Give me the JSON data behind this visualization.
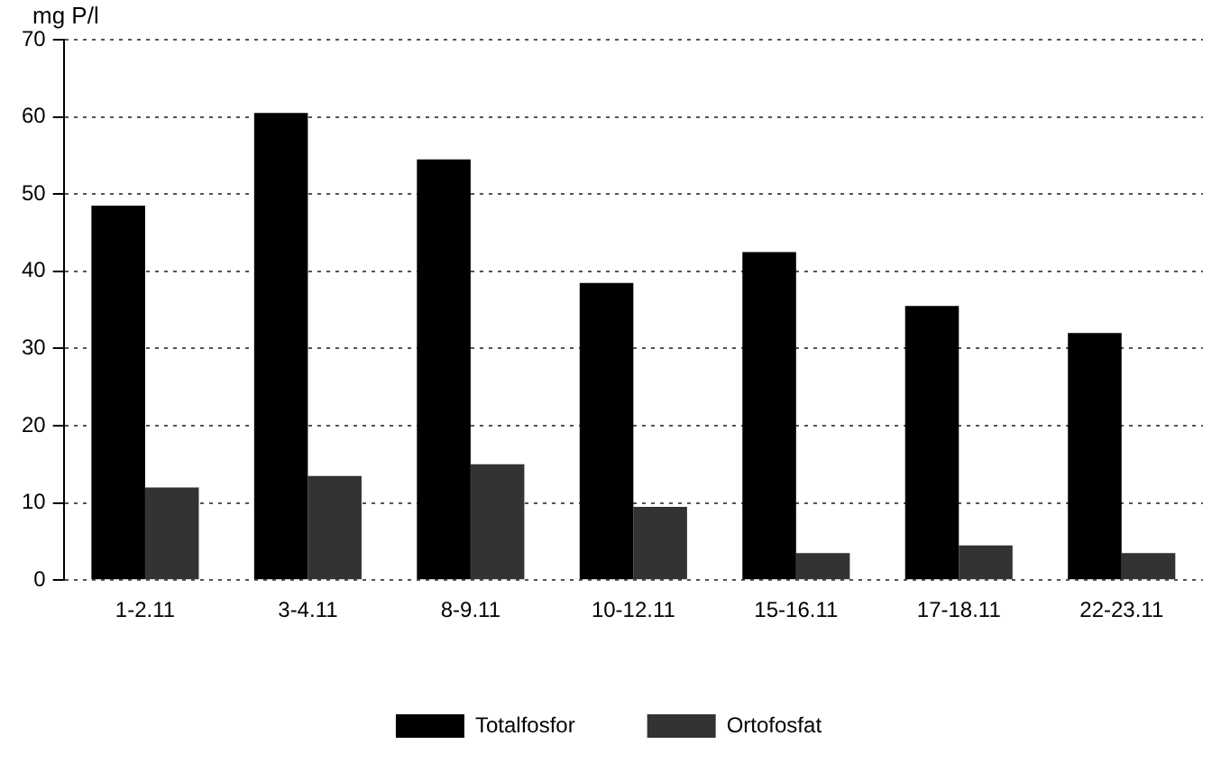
{
  "chart_data": {
    "type": "bar",
    "ylabel": "mg P/l",
    "categories": [
      "1-2.11",
      "3-4.11",
      "8-9.11",
      "10-12.11",
      "15-16.11",
      "17-18.11",
      "22-23.11"
    ],
    "series": [
      {
        "name": "Totalfosfor",
        "color": "#000000",
        "values": [
          48.5,
          60.5,
          54.5,
          38.5,
          42.5,
          35.5,
          32
        ]
      },
      {
        "name": "Ortofosfat",
        "color": "#333333",
        "values": [
          12,
          13.5,
          15,
          9.5,
          3.5,
          4.5,
          3.5
        ]
      }
    ],
    "ylim": [
      0,
      70
    ],
    "yticks": [
      0,
      10,
      20,
      30,
      40,
      50,
      60,
      70
    ],
    "grid": "y",
    "legend": "bottom"
  }
}
